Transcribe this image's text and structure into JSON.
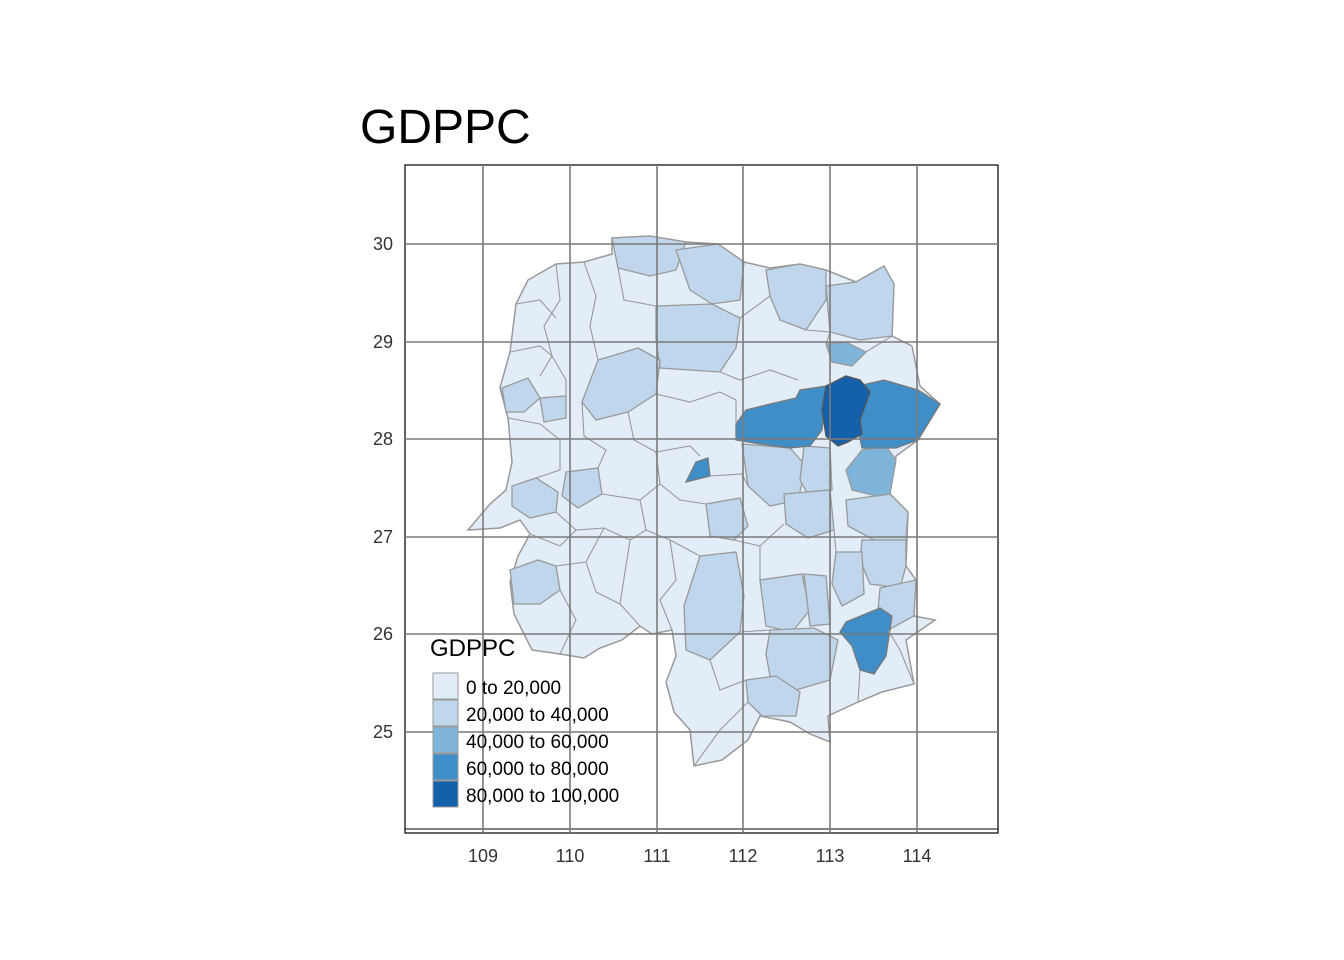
{
  "title": "GDPPC",
  "map": {
    "x_ticks": [
      "109",
      "110",
      "111",
      "112",
      "113",
      "114"
    ],
    "y_ticks": [
      "30",
      "29",
      "28",
      "27",
      "26",
      "25"
    ],
    "colors": {
      "class1": "#e3edf8",
      "class2": "#c0d6ec",
      "class3": "#7fb4da",
      "class4": "#3f8ec8",
      "class5": "#1560ab",
      "border": "#999999",
      "grid": "#7a7a7a"
    }
  },
  "legend": {
    "title": "GDPPC",
    "items": [
      {
        "label": "0 to 20,000",
        "color": "#e3edf8"
      },
      {
        "label": "20,000 to 40,000",
        "color": "#c0d6ec"
      },
      {
        "label": "40,000 to 60,000",
        "color": "#7fb4da"
      },
      {
        "label": "60,000 to 80,000",
        "color": "#3f8ec8"
      },
      {
        "label": "80,000 to 100,000",
        "color": "#1560ab"
      }
    ]
  }
}
